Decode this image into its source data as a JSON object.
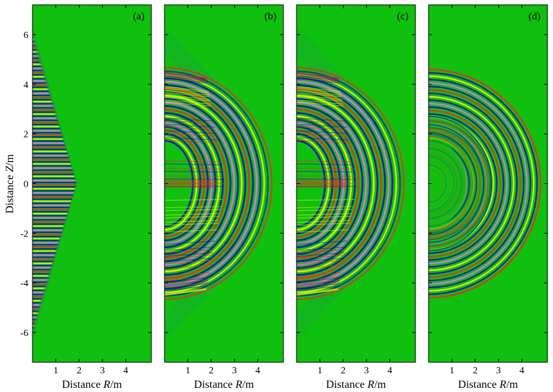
{
  "chart_data": [
    {
      "type": "heatmap",
      "panel_label": "(a)",
      "xlabel_prefix": "Distance ",
      "xlabel_var": "R",
      "xlabel_unit": "/m",
      "ylabel_prefix": "Distance ",
      "ylabel_var": "Z",
      "ylabel_unit": "/m",
      "xlim": [
        0,
        5.1
      ],
      "ylim": [
        -7.2,
        7.2
      ],
      "xticks": [
        1,
        2,
        3,
        4
      ],
      "yticks": [
        -6,
        -4,
        -2,
        0,
        2,
        4,
        6
      ],
      "front_r": 1.9,
      "front_z": 6.0,
      "background_color": "#0fc00f"
    },
    {
      "type": "heatmap",
      "panel_label": "(b)",
      "xlabel_prefix": "Distance ",
      "xlabel_var": "R",
      "xlabel_unit": "/m",
      "xlim": [
        0,
        5.1
      ],
      "ylim": [
        -7.2,
        7.2
      ],
      "xticks": [
        1,
        2,
        3,
        4
      ],
      "front_r": 4.6,
      "front_z": 6.3,
      "background_color": "#0fc00f"
    },
    {
      "type": "heatmap",
      "panel_label": "(c)",
      "xlabel_prefix": "Distance ",
      "xlabel_var": "R",
      "xlabel_unit": "/m",
      "xlim": [
        0,
        5.1
      ],
      "ylim": [
        -7.2,
        7.2
      ],
      "xticks": [
        1,
        2,
        3,
        4
      ],
      "front_r": 4.6,
      "front_z": 6.3,
      "background_color": "#0fc00f"
    },
    {
      "type": "heatmap",
      "panel_label": "(d)",
      "xlabel_prefix": "Distance ",
      "xlabel_var": "R",
      "xlabel_unit": "/m",
      "xlim": [
        0,
        5.1
      ],
      "ylim": [
        -7.2,
        7.2
      ],
      "xticks": [
        1,
        2,
        3,
        4
      ],
      "front_r": 4.8,
      "front_z": 4.6,
      "inner_r": 2.7,
      "background_color": "#0fc00f"
    }
  ],
  "colors": {
    "background": "#0fc00f",
    "positive": "#ff2020",
    "negative": "#1010c0",
    "mid_positive": "#f0f000",
    "accent": "#ff60ff"
  }
}
